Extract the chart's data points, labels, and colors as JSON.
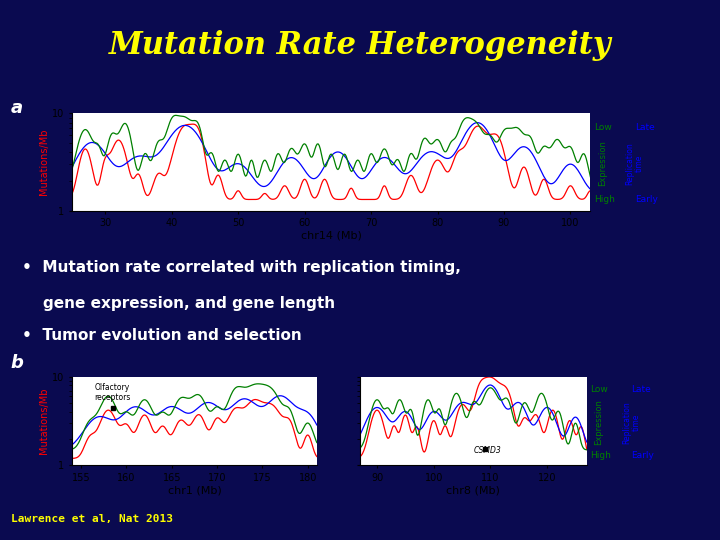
{
  "title": "Mutation Rate Heterogeneity",
  "title_color": "#FFFF00",
  "bg_color": "#0a0a50",
  "panel_bg_color": "#c8c8b0",
  "bullet_bg": "#1a3fcc",
  "footer_bg": "#1a3fcc",
  "bullet_text_color": "#ffffff",
  "bullet1a": "•  Mutation rate correlated with replication timing,",
  "bullet1b": "    gene expression, and gene length",
  "bullet2": "•  Tumor evolution and selection",
  "footer": "Lawrence et al, Nat 2013",
  "footer_color": "#FFFF00",
  "panel_a_xlabel": "chr14 (Mb)",
  "panel_a_xticks": [
    30,
    40,
    50,
    60,
    70,
    80,
    90,
    100
  ],
  "panel_b1_xlabel": "chr1 (Mb)",
  "panel_b1_xticks": [
    155,
    160,
    165,
    170,
    175,
    180
  ],
  "panel_b2_xlabel": "chr8 (Mb)",
  "panel_b2_xticks": [
    90,
    100,
    110,
    120
  ],
  "ylabel": "Mutations/Mb",
  "right_top_green": "Low",
  "right_top_blue": "Late",
  "right_mid_green": "Expression",
  "right_mid_blue": "Replication\ntime",
  "right_bot_green": "High",
  "right_bot_blue": "Early"
}
